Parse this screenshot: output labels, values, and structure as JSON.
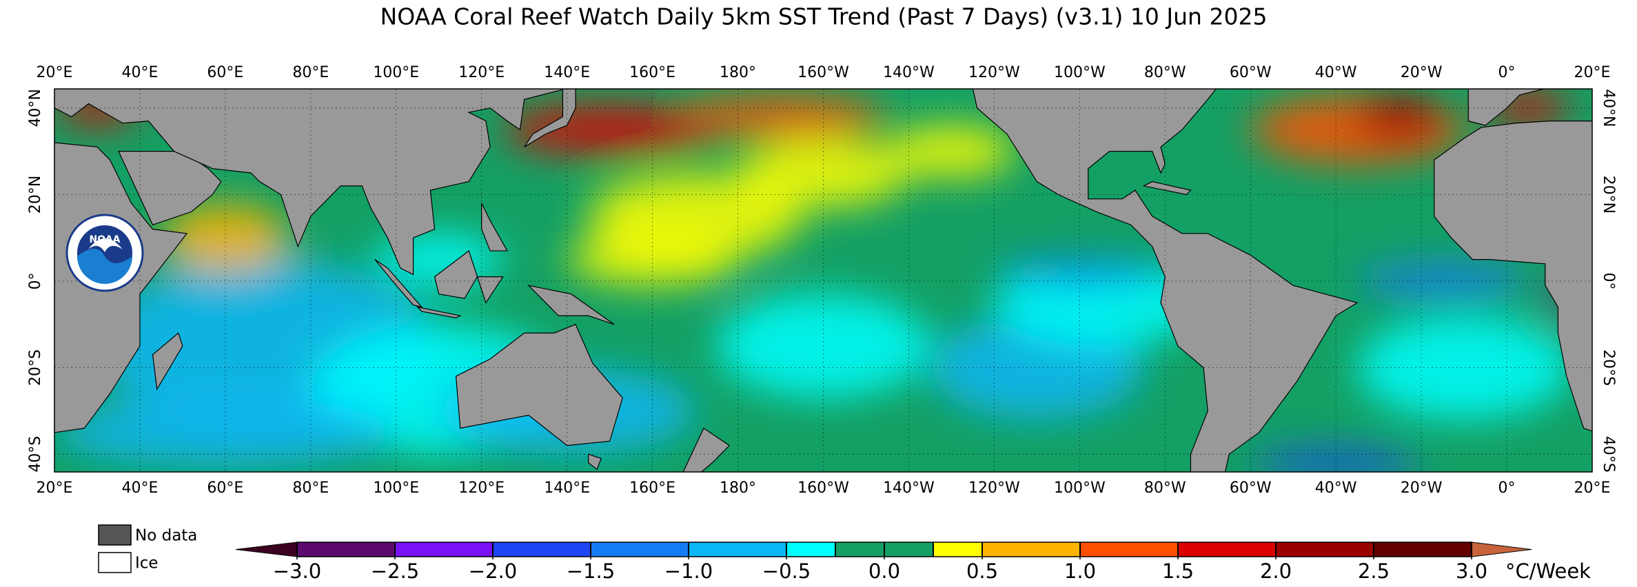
{
  "title": "NOAA Coral Reef Watch Daily 5km SST Trend (Past 7 Days)  (v3.1)   10 Jun 2025",
  "map": {
    "lon_labels": [
      "20°E",
      "40°E",
      "60°E",
      "80°E",
      "100°E",
      "120°E",
      "140°E",
      "160°E",
      "180°",
      "160°W",
      "140°W",
      "120°W",
      "100°W",
      "80°W",
      "60°W",
      "40°W",
      "20°W",
      "0°",
      "20°E"
    ],
    "lat_labels": [
      "40°N",
      "20°N",
      "0°",
      "20°S",
      "40°S"
    ]
  },
  "logo": {
    "text": "NOAA"
  },
  "legend": {
    "no_data": "No data",
    "ice": "Ice",
    "no_data_color": "#555555",
    "ice_color": "#ffffff"
  },
  "colorbar": {
    "lim": [
      -3,
      3
    ],
    "bins": [
      -3,
      -2.5,
      -2,
      -1.5,
      -1,
      -0.5,
      -0.25,
      0,
      0.25,
      0.5,
      1,
      1.5,
      2,
      2.5,
      3
    ],
    "colors": [
      "#5c0a6e",
      "#7812f5",
      "#1e46f5",
      "#147cf5",
      "#0ab6f5",
      "#00ffff",
      "#14a064",
      "#14a064",
      "#ffff00",
      "#ffb400",
      "#ff5000",
      "#dc0000",
      "#9a0000",
      "#640000"
    ],
    "under_color": "#3c0020",
    "over_color": "#c8643c",
    "ticks": [
      {
        "value": -3,
        "label": "−3.0"
      },
      {
        "value": -2.5,
        "label": "−2.5"
      },
      {
        "value": -2,
        "label": "−2.0"
      },
      {
        "value": -1.5,
        "label": "−1.5"
      },
      {
        "value": -1,
        "label": "−1.0"
      },
      {
        "value": -0.5,
        "label": "−0.5"
      },
      {
        "value": 0,
        "label": "0.0"
      },
      {
        "value": 0.5,
        "label": "0.5"
      },
      {
        "value": 1,
        "label": "1.0"
      },
      {
        "value": 1.5,
        "label": "1.5"
      },
      {
        "value": 2,
        "label": "2.0"
      },
      {
        "value": 2.5,
        "label": "2.5"
      },
      {
        "value": 3,
        "label": "3.0"
      }
    ],
    "unit": "°C/Week"
  }
}
